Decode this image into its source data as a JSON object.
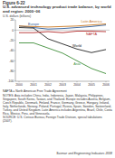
{
  "chart_data": {
    "type": "line",
    "title": "Figure 6-22",
    "subtitle": "U.S. advanced technology product trade balance, by world and region: 2000–06",
    "y_label": "U.S. dollars (billions)",
    "categories": [
      "2000",
      "2001",
      "2002",
      "2003",
      "2004",
      "2005",
      "2006"
    ],
    "series": [
      {
        "name": "Europe",
        "color": "#2e5c9a",
        "values": [
          8,
          5,
          2,
          3,
          5,
          7,
          10
        ]
      },
      {
        "name": "Latin America",
        "color": "#c8761e",
        "values": [
          8,
          7,
          6,
          7,
          8,
          10,
          12
        ]
      },
      {
        "name": "Asia",
        "color": "#3f8f3a",
        "values": [
          -25,
          -25,
          -35,
          -45,
          -60,
          -75,
          -85
        ]
      },
      {
        "name": "World",
        "color": "#222222",
        "values": [
          5,
          4,
          -17,
          -27,
          -37,
          -44,
          -38
        ]
      },
      {
        "name": "NAFTA",
        "color": "#b22a2a",
        "values": [
          -5,
          -5,
          -3,
          -5,
          -2,
          -2,
          -3
        ]
      }
    ],
    "ylim": [
      -100,
      20
    ],
    "yticks": [
      -100,
      -80,
      -60,
      -40,
      -20,
      0,
      20
    ],
    "grid": false,
    "notes": [
      "NAFTA = North American Free Trade Agreement",
      "NOTES: Asia includes China, India, Indonesia, Japan, Malaysia, Philippines, Singapore, South Korea, Taiwan, and Thailand. Europe includes Austria, Belgium, Czech Republic, Denmark, Finland, France, Germany, Greece, Hungary, Ireland, Italy, Netherlands, Norway, Poland, Portugal, Russia, Spain, Sweden, Switzerland, Turkey, and United Kingdom. Latin America includes Argentina, Brazil, Chile, Costa Rica, Mexico, Peru, and Venezuela.",
      "SOURCE: U.S. Census Bureau, Foreign Trade Division, special tabulations (2007)."
    ],
    "publication": "Science and Engineering Indicators 2008"
  }
}
